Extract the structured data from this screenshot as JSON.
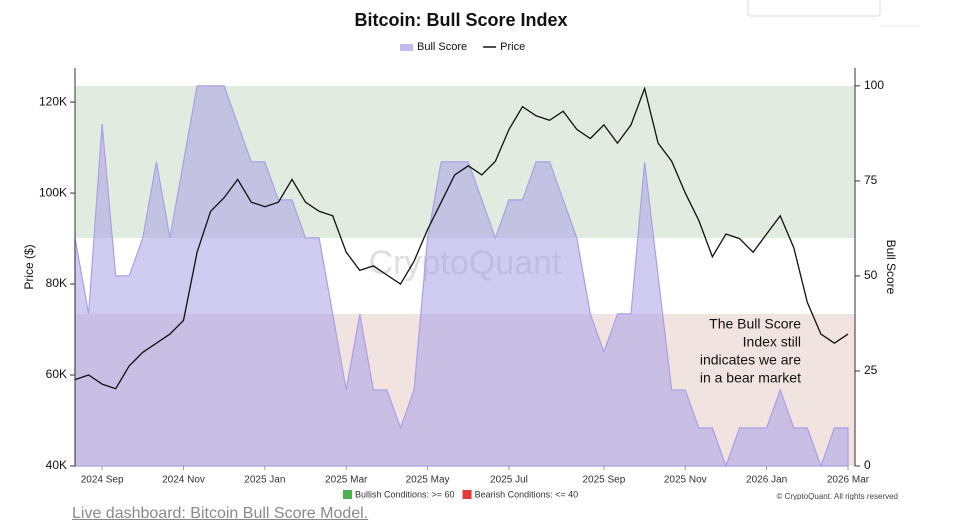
{
  "chart_data": {
    "type": "line",
    "title": "Bitcoin: Bull Score Index",
    "ylabel": "Price ($)",
    "y2label": "Bull Score",
    "categories": [
      null,
      null,
      "2024 Sep",
      null,
      null,
      null,
      null,
      null,
      "2024 Nov",
      null,
      null,
      null,
      null,
      null,
      "2025 Jan",
      null,
      null,
      null,
      null,
      null,
      "2025 Mar",
      null,
      null,
      null,
      null,
      null,
      "2025 May",
      null,
      null,
      null,
      null,
      null,
      "2025 Jul",
      null,
      null,
      null,
      null,
      null,
      null,
      "2025 Sep",
      null,
      null,
      null,
      null,
      null,
      "2025 Nov",
      null,
      null,
      null,
      null,
      null,
      "2026 Jan",
      null,
      null,
      null,
      null,
      null,
      "2026 Mar"
    ],
    "series": [
      {
        "name": "Bull Score",
        "color": "#aaa0e6",
        "axis": "y2",
        "values": [
          60,
          40,
          90,
          50,
          50,
          60,
          80,
          60,
          80,
          100,
          100,
          100,
          90,
          80,
          80,
          70,
          70,
          60,
          60,
          40,
          20,
          40,
          20,
          20,
          10,
          20,
          60,
          80,
          80,
          80,
          70,
          60,
          70,
          70,
          80,
          80,
          70,
          60,
          40,
          30,
          40,
          40,
          80,
          50,
          20,
          20,
          10,
          10,
          0,
          10,
          10,
          10,
          20,
          10,
          10,
          0,
          10,
          10
        ]
      },
      {
        "name": "Price",
        "color": "#111111",
        "values": [
          59000,
          60000,
          58000,
          57000,
          62000,
          65000,
          67000,
          69000,
          72000,
          87000,
          96000,
          99000,
          103000,
          98000,
          97000,
          98000,
          103000,
          98000,
          96000,
          95000,
          87000,
          83000,
          84000,
          82000,
          80000,
          85000,
          92000,
          98000,
          104000,
          106000,
          104000,
          107000,
          114000,
          119000,
          117000,
          116000,
          118000,
          114000,
          112000,
          115000,
          111000,
          115000,
          123000,
          111000,
          107000,
          100000,
          94000,
          86000,
          91000,
          90000,
          87000,
          91000,
          95000,
          88000,
          76000,
          69000,
          67000,
          69000
        ]
      }
    ],
    "ylim": [
      40000,
      127500
    ],
    "yticks": [
      {
        "value": 40000,
        "label": "40K"
      },
      {
        "value": 60000,
        "label": "60K"
      },
      {
        "value": 80000,
        "label": "80K"
      },
      {
        "value": 100000,
        "label": "100K"
      },
      {
        "value": 120000,
        "label": "120K"
      }
    ],
    "y2lim": [
      0,
      104.7
    ],
    "y2ticks": [
      0,
      25,
      50,
      75,
      100
    ],
    "zones": [
      {
        "from": 60,
        "to": 100,
        "color": "#e2ebe0",
        "swatch": "#4caf50",
        "label": "Bullish Conditions: >= 60"
      },
      {
        "from": 0,
        "to": 40,
        "color": "#f0e3e0",
        "swatch": "#e53935",
        "label": "Bearish Conditions: <= 40"
      }
    ],
    "annotation": [
      "The Bull Score",
      "Index still",
      "indicates we are",
      "in a bear market"
    ],
    "watermark": "CryptoQuant",
    "copyright": "© CryptoQuant. All rights reserved"
  },
  "link": "Live dashboard: Bitcoin Bull Score Model."
}
